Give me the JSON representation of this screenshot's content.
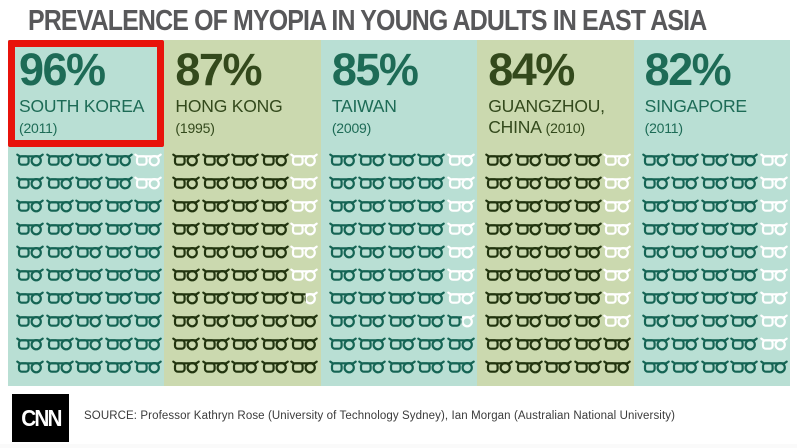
{
  "title": "PREVALENCE OF MYOPIA IN YOUNG ADULTS IN EAST ASIA",
  "chart_data": {
    "type": "pictogram",
    "title": "PREVALENCE OF MYOPIA IN YOUNG ADULTS IN EAST ASIA",
    "unit": "percent of young adults with myopia",
    "icon": "glasses",
    "percent_per_icon": 2,
    "icons_per_country": 50,
    "categories": [
      "SOUTH KOREA (2011)",
      "HONG KONG (1995)",
      "TAIWAN (2009)",
      "GUANGZHOU, CHINA (2010)",
      "SINGAPORE (2011)"
    ],
    "values": [
      96,
      87,
      85,
      84,
      82
    ],
    "highlighted_category": "SOUTH KOREA (2011)",
    "legend_position": "none",
    "grid": false
  },
  "columns": [
    {
      "percent_label": "96%",
      "percent": 96,
      "name_line1": "SOUTH KOREA",
      "name_line2": "",
      "year": "(2011)",
      "theme": "teal",
      "highlighted": true,
      "icons": {
        "filled": 48,
        "half": 0,
        "empty": 2
      }
    },
    {
      "percent_label": "87%",
      "percent": 87,
      "name_line1": "HONG KONG",
      "name_line2": "",
      "year": "(1995)",
      "theme": "olive",
      "highlighted": false,
      "icons": {
        "filled": 43,
        "half": 1,
        "empty": 6
      }
    },
    {
      "percent_label": "85%",
      "percent": 85,
      "name_line1": "TAIWAN",
      "name_line2": "",
      "year": "(2009)",
      "theme": "teal",
      "highlighted": false,
      "icons": {
        "filled": 42,
        "half": 1,
        "empty": 7
      }
    },
    {
      "percent_label": "84%",
      "percent": 84,
      "name_line1": "GUANGZHOU,",
      "name_line2": "CHINA",
      "year": "(2010)",
      "theme": "olive",
      "highlighted": false,
      "icons": {
        "filled": 42,
        "half": 0,
        "empty": 8
      }
    },
    {
      "percent_label": "82%",
      "percent": 82,
      "name_line1": "SINGAPORE",
      "name_line2": "",
      "year": "(2011)",
      "theme": "teal",
      "highlighted": false,
      "icons": {
        "filled": 41,
        "half": 0,
        "empty": 9
      }
    }
  ],
  "footer": {
    "logo_text": "CNN",
    "source": "SOURCE: Professor Kathryn Rose (University of Technology Sydney), Ian Morgan (Australian National University)"
  },
  "colors": {
    "teal_bg": "#b9dfd4",
    "teal_text": "#1d6b56",
    "teal_dark": "#156454",
    "olive_bg": "#cbd9af",
    "olive_text": "#33491c",
    "olive_dark": "#22340f",
    "highlight_red": "#e8130b",
    "title_gray": "#58585a",
    "empty_icon": "#ffffff"
  }
}
